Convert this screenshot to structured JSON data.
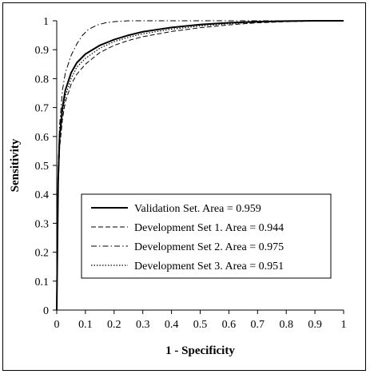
{
  "chart_data": {
    "type": "line",
    "xlabel": "1 - Specificity",
    "ylabel": "Sensitivity",
    "xlim": [
      0,
      1
    ],
    "ylim": [
      0,
      1
    ],
    "x_ticks": [
      "0",
      "0.1",
      "0.2",
      "0.3",
      "0.4",
      "0.5",
      "0.6",
      "0.7",
      "0.8",
      "0.9",
      "1"
    ],
    "y_ticks": [
      "0",
      "0.1",
      "0.2",
      "0.3",
      "0.4",
      "0.5",
      "0.6",
      "0.7",
      "0.8",
      "0.9",
      "1"
    ],
    "grid": false,
    "legend_position": "bottom-right",
    "series": [
      {
        "name": "Validation Set. Area = 0.959",
        "style": "solid",
        "x": [
          0,
          0.005,
          0.01,
          0.02,
          0.03,
          0.05,
          0.07,
          0.1,
          0.15,
          0.2,
          0.25,
          0.3,
          0.4,
          0.5,
          0.6,
          0.7,
          0.8,
          0.9,
          1
        ],
        "y": [
          0,
          0.45,
          0.6,
          0.7,
          0.76,
          0.82,
          0.855,
          0.885,
          0.915,
          0.935,
          0.95,
          0.962,
          0.977,
          0.987,
          0.993,
          0.997,
          0.999,
          1.0,
          1.0
        ]
      },
      {
        "name": "Development Set 1. Area = 0.944",
        "style": "dashed",
        "x": [
          0,
          0.005,
          0.01,
          0.02,
          0.03,
          0.05,
          0.07,
          0.1,
          0.15,
          0.2,
          0.25,
          0.3,
          0.4,
          0.5,
          0.6,
          0.7,
          0.8,
          0.9,
          1
        ],
        "y": [
          0,
          0.42,
          0.56,
          0.66,
          0.72,
          0.78,
          0.815,
          0.85,
          0.89,
          0.915,
          0.932,
          0.945,
          0.963,
          0.976,
          0.986,
          0.993,
          0.997,
          0.999,
          1.0
        ]
      },
      {
        "name": "Development Set 2. Area = 0.975",
        "style": "dashdot",
        "x": [
          0,
          0.005,
          0.01,
          0.02,
          0.03,
          0.05,
          0.07,
          0.09,
          0.11,
          0.14,
          0.17,
          0.2,
          0.25,
          0.3,
          1
        ],
        "y": [
          0,
          0.5,
          0.64,
          0.76,
          0.82,
          0.88,
          0.92,
          0.95,
          0.97,
          0.985,
          0.993,
          0.997,
          1.0,
          1.0,
          1.0
        ]
      },
      {
        "name": "Development Set 3. Area = 0.951",
        "style": "dotted",
        "x": [
          0,
          0.005,
          0.01,
          0.02,
          0.03,
          0.05,
          0.07,
          0.1,
          0.15,
          0.2,
          0.25,
          0.3,
          0.4,
          0.5,
          0.6,
          0.7,
          0.8,
          0.9,
          1
        ],
        "y": [
          0,
          0.44,
          0.58,
          0.68,
          0.74,
          0.8,
          0.84,
          0.87,
          0.905,
          0.928,
          0.943,
          0.955,
          0.971,
          0.982,
          0.99,
          0.995,
          0.998,
          1.0,
          1.0
        ]
      }
    ]
  }
}
